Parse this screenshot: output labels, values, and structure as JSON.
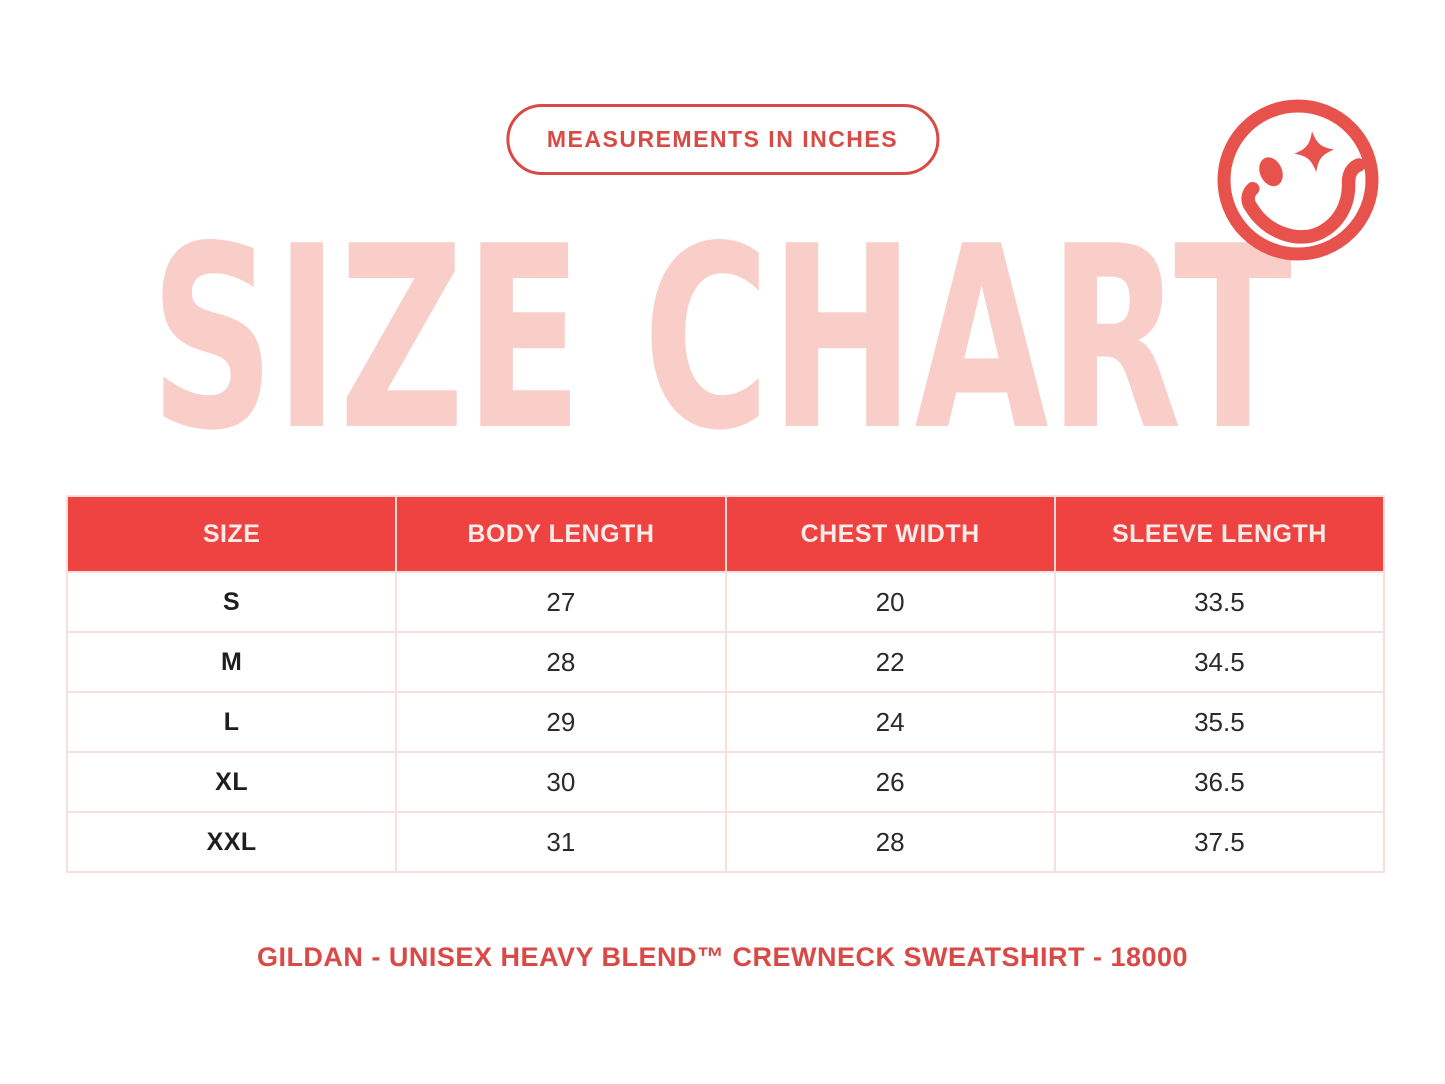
{
  "badge": {
    "label": "MEASUREMENTS IN INCHES"
  },
  "title": {
    "text": "SIZE CHART"
  },
  "icons": {
    "smiley": "winking-smiley-face-with-sparkle-eye"
  },
  "chart_data": {
    "type": "table",
    "title": "SIZE CHART",
    "subtitle": "MEASUREMENTS IN INCHES",
    "units": "inches",
    "columns": [
      "SIZE",
      "BODY LENGTH",
      "CHEST WIDTH",
      "SLEEVE LENGTH"
    ],
    "rows": [
      [
        "S",
        "27",
        "20",
        "33.5"
      ],
      [
        "M",
        "28",
        "22",
        "34.5"
      ],
      [
        "L",
        "29",
        "24",
        "35.5"
      ],
      [
        "XL",
        "30",
        "26",
        "36.5"
      ],
      [
        "XXL",
        "31",
        "28",
        "37.5"
      ]
    ]
  },
  "footer": {
    "text": "GILDAN - UNISEX HEAVY BLEND™ CREWNECK SWEATSHIRT - 18000"
  },
  "colors": {
    "header_red": "#EE4341",
    "accent_red": "#D94945",
    "smiley_red": "#E8524C",
    "title_pink": "#F9CDC8",
    "border_pink": "#F7DFDB",
    "text_dark": "#2B2B2B",
    "background": "#FFFFFF"
  }
}
